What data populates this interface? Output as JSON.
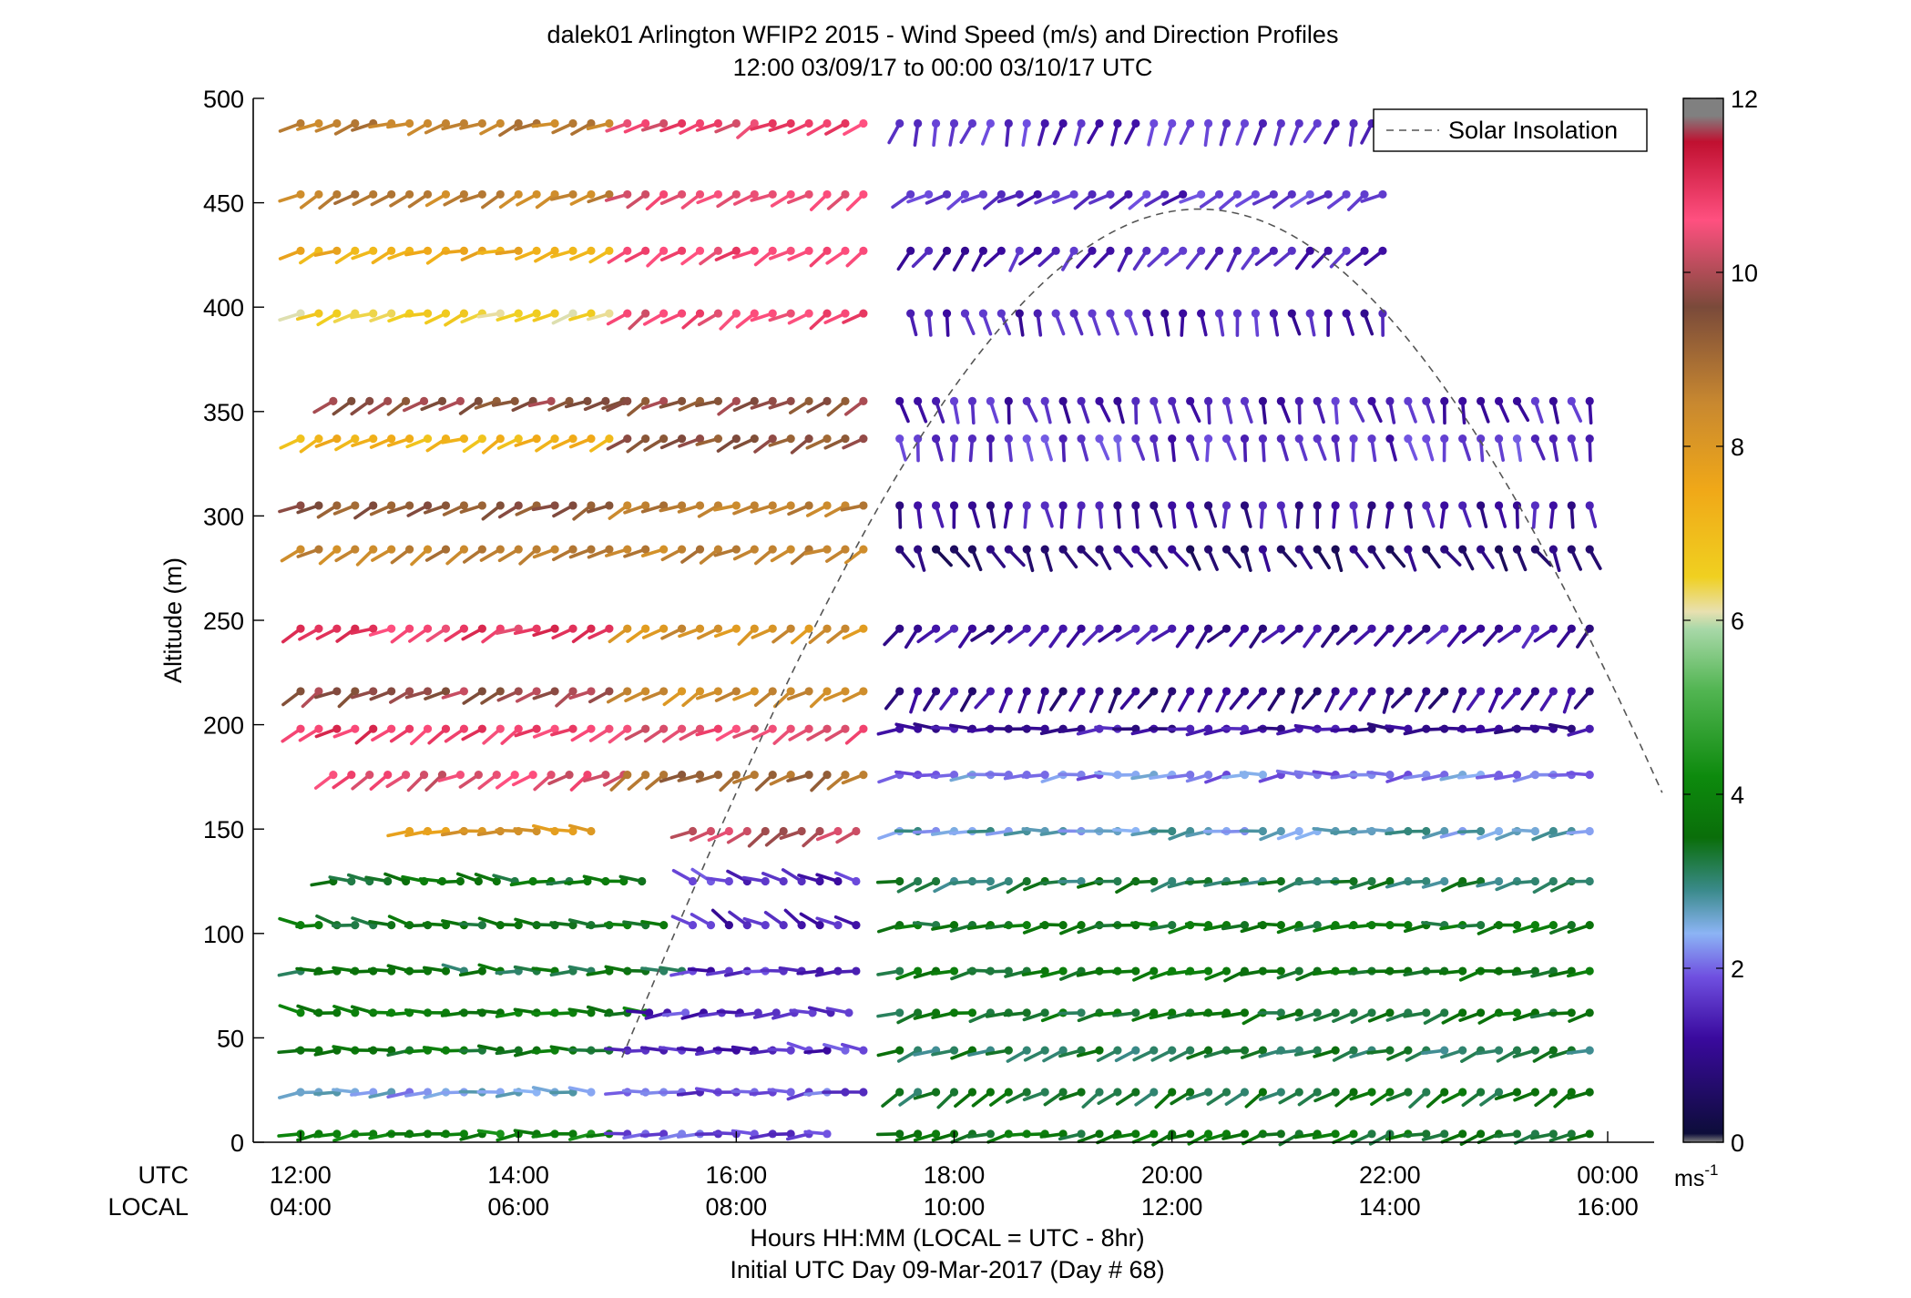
{
  "chart_data": {
    "type": "scatter",
    "title": "dalek01 Arlington WFIP2 2015 - Wind Speed (m/s) and Direction Profiles",
    "subtitle": "12:00 03/09/17 to 00:00 03/10/17  UTC",
    "xlabel": "Hours HH:MM  (LOCAL = UTC - 8hr)",
    "xlabel2": "Initial UTC Day 09-Mar-2017 (Day # 68)",
    "ylabel": "Altitude (m)",
    "row_label_utc": "UTC",
    "row_label_local": "LOCAL",
    "xlim_hours_utc": [
      11.65,
      24.5
    ],
    "ylim": [
      0,
      500
    ],
    "x_ticks_utc": [
      "12:00",
      "14:00",
      "16:00",
      "18:00",
      "20:00",
      "22:00",
      "00:00"
    ],
    "x_ticks_local": [
      "04:00",
      "06:00",
      "08:00",
      "10:00",
      "12:00",
      "14:00",
      "16:00"
    ],
    "x_tick_hours": [
      12,
      14,
      16,
      18,
      20,
      22,
      24
    ],
    "y_ticks": [
      0,
      50,
      100,
      150,
      200,
      250,
      300,
      350,
      400,
      450,
      500
    ],
    "legend": {
      "label": "Solar Insolation",
      "position": "top-right"
    },
    "colorbar": {
      "ticks": [
        0,
        2,
        4,
        6,
        8,
        10,
        12
      ],
      "unit_base": "ms",
      "unit_exp": "-1",
      "stops": [
        {
          "v": 0,
          "c": "#808080"
        },
        {
          "v": 0.1,
          "c": "#0d0d3a"
        },
        {
          "v": 1.2,
          "c": "#3a0a9e"
        },
        {
          "v": 1.9,
          "c": "#6f4fe0"
        },
        {
          "v": 2.4,
          "c": "#8cb4f5"
        },
        {
          "v": 2.9,
          "c": "#3a8a8a"
        },
        {
          "v": 3.5,
          "c": "#0a6e0a"
        },
        {
          "v": 4.2,
          "c": "#0d8a0d"
        },
        {
          "v": 5.2,
          "c": "#52b552"
        },
        {
          "v": 5.9,
          "c": "#a8d8a8"
        },
        {
          "v": 6.1,
          "c": "#e8e0b0"
        },
        {
          "v": 6.5,
          "c": "#f0d020"
        },
        {
          "v": 7.5,
          "c": "#f0a818"
        },
        {
          "v": 8.5,
          "c": "#c88830"
        },
        {
          "v": 9.6,
          "c": "#7a4a3a"
        },
        {
          "v": 10.6,
          "c": "#ff5080"
        },
        {
          "v": 11.5,
          "c": "#c01030"
        },
        {
          "v": 11.8,
          "c": "#808080"
        }
      ]
    },
    "insolation_curve": {
      "description_units": "peak height in altitude units",
      "sunrise_hour_utc": 14.95,
      "sunset_hour_utc": 26.2,
      "peak_hour_utc": 20.25,
      "peak_altitude": 447,
      "end_hour_utc": 24.5
    },
    "altitudes": [
      4,
      24,
      44,
      62,
      82,
      104,
      125,
      149,
      176,
      198,
      216,
      246,
      284,
      305,
      337,
      355,
      397,
      427,
      454,
      488
    ],
    "time_step_hours": 0.1667,
    "vectors_note": "Wind barbs: each row is an altitude; segments grouped by time range with representative direction (deg, meteorological) and speed (m/s).",
    "segments": [
      {
        "alt": 4,
        "t0": 12.0,
        "t1": 15.0,
        "dir": 265,
        "spd": 4.0
      },
      {
        "alt": 4,
        "t0": 15.0,
        "t1": 17.0,
        "dir": 270,
        "spd": 1.8
      },
      {
        "alt": 4,
        "t0": 17.5,
        "t1": 24.0,
        "dir": 255,
        "spd": 3.6
      },
      {
        "alt": 24,
        "t0": 12.0,
        "t1": 14.8,
        "dir": 270,
        "spd": 2.4
      },
      {
        "alt": 24,
        "t0": 15.0,
        "t1": 17.2,
        "dir": 265,
        "spd": 1.8
      },
      {
        "alt": 24,
        "t0": 17.5,
        "t1": 24.0,
        "dir": 240,
        "spd": 3.4
      },
      {
        "alt": 44,
        "t0": 12.0,
        "t1": 15.0,
        "dir": 270,
        "spd": 3.6
      },
      {
        "alt": 44,
        "t0": 15.0,
        "t1": 17.2,
        "dir": 275,
        "spd": 1.6
      },
      {
        "alt": 44,
        "t0": 17.5,
        "t1": 24.0,
        "dir": 255,
        "spd": 3.2
      },
      {
        "alt": 62,
        "t0": 12.0,
        "t1": 15.2,
        "dir": 275,
        "spd": 3.8
      },
      {
        "alt": 62,
        "t0": 15.2,
        "t1": 17.2,
        "dir": 270,
        "spd": 1.6
      },
      {
        "alt": 62,
        "t0": 17.5,
        "t1": 24.0,
        "dir": 255,
        "spd": 3.5
      },
      {
        "alt": 82,
        "t0": 12.0,
        "t1": 15.6,
        "dir": 272,
        "spd": 3.4
      },
      {
        "alt": 82,
        "t0": 15.6,
        "t1": 17.2,
        "dir": 270,
        "spd": 1.6
      },
      {
        "alt": 82,
        "t0": 17.5,
        "t1": 24.0,
        "dir": 258,
        "spd": 3.6
      },
      {
        "alt": 104,
        "t0": 12.0,
        "t1": 15.4,
        "dir": 280,
        "spd": 3.6
      },
      {
        "alt": 104,
        "t0": 15.6,
        "t1": 17.2,
        "dir": 300,
        "spd": 1.4
      },
      {
        "alt": 104,
        "t0": 17.5,
        "t1": 24.0,
        "dir": 262,
        "spd": 3.6
      },
      {
        "alt": 125,
        "t0": 12.3,
        "t1": 15.2,
        "dir": 275,
        "spd": 3.6
      },
      {
        "alt": 125,
        "t0": 15.6,
        "t1": 17.2,
        "dir": 290,
        "spd": 1.6
      },
      {
        "alt": 125,
        "t0": 17.5,
        "t1": 24.0,
        "dir": 255,
        "spd": 3.2
      },
      {
        "alt": 149,
        "t0": 13.0,
        "t1": 14.8,
        "dir": 270,
        "spd": 8.0
      },
      {
        "alt": 149,
        "t0": 15.6,
        "t1": 17.2,
        "dir": 240,
        "spd": 10.2
      },
      {
        "alt": 149,
        "t0": 17.5,
        "t1": 24.0,
        "dir": 262,
        "spd": 2.6
      },
      {
        "alt": 176,
        "t0": 12.3,
        "t1": 15.0,
        "dir": 240,
        "spd": 10.5
      },
      {
        "alt": 176,
        "t0": 15.0,
        "t1": 17.2,
        "dir": 240,
        "spd": 9.0
      },
      {
        "alt": 176,
        "t0": 17.5,
        "t1": 24.0,
        "dir": 265,
        "spd": 2.2
      },
      {
        "alt": 198,
        "t0": 12.0,
        "t1": 15.0,
        "dir": 240,
        "spd": 10.8
      },
      {
        "alt": 198,
        "t0": 15.0,
        "t1": 17.2,
        "dir": 240,
        "spd": 10.5
      },
      {
        "alt": 198,
        "t0": 17.5,
        "t1": 24.0,
        "dir": 268,
        "spd": 1.2
      },
      {
        "alt": 216,
        "t0": 12.0,
        "t1": 15.0,
        "dir": 240,
        "spd": 9.8
      },
      {
        "alt": 216,
        "t0": 15.0,
        "t1": 17.2,
        "dir": 240,
        "spd": 8.4
      },
      {
        "alt": 216,
        "t0": 17.5,
        "t1": 24.0,
        "dir": 210,
        "spd": 1.0
      },
      {
        "alt": 246,
        "t0": 12.0,
        "t1": 15.0,
        "dir": 245,
        "spd": 10.8
      },
      {
        "alt": 246,
        "t0": 15.0,
        "t1": 17.2,
        "dir": 240,
        "spd": 8.2
      },
      {
        "alt": 246,
        "t0": 17.5,
        "t1": 24.0,
        "dir": 225,
        "spd": 1.2
      },
      {
        "alt": 284,
        "t0": 12.0,
        "t1": 15.0,
        "dir": 240,
        "spd": 8.6
      },
      {
        "alt": 284,
        "t0": 15.0,
        "t1": 17.2,
        "dir": 245,
        "spd": 8.6
      },
      {
        "alt": 284,
        "t0": 17.5,
        "t1": 24.0,
        "dir": 150,
        "spd": 0.8
      },
      {
        "alt": 305,
        "t0": 12.0,
        "t1": 15.0,
        "dir": 245,
        "spd": 9.4
      },
      {
        "alt": 305,
        "t0": 15.0,
        "t1": 17.2,
        "dir": 245,
        "spd": 8.6
      },
      {
        "alt": 305,
        "t0": 17.5,
        "t1": 24.0,
        "dir": 175,
        "spd": 1.2
      },
      {
        "alt": 337,
        "t0": 12.0,
        "t1": 15.0,
        "dir": 245,
        "spd": 7.2
      },
      {
        "alt": 337,
        "t0": 15.0,
        "t1": 17.2,
        "dir": 245,
        "spd": 9.4
      },
      {
        "alt": 337,
        "t0": 17.5,
        "t1": 24.0,
        "dir": 170,
        "spd": 1.6
      },
      {
        "alt": 355,
        "t0": 12.3,
        "t1": 15.0,
        "dir": 245,
        "spd": 9.6
      },
      {
        "alt": 355,
        "t0": 15.0,
        "t1": 17.2,
        "dir": 245,
        "spd": 9.6
      },
      {
        "alt": 355,
        "t0": 17.5,
        "t1": 24.0,
        "dir": 165,
        "spd": 1.4
      },
      {
        "alt": 397,
        "t0": 12.0,
        "t1": 15.0,
        "dir": 250,
        "spd": 6.4
      },
      {
        "alt": 397,
        "t0": 15.0,
        "t1": 17.2,
        "dir": 240,
        "spd": 10.6
      },
      {
        "alt": 397,
        "t0": 17.6,
        "t1": 22.0,
        "dir": 170,
        "spd": 1.4
      },
      {
        "alt": 427,
        "t0": 12.0,
        "t1": 15.0,
        "dir": 250,
        "spd": 7.4
      },
      {
        "alt": 427,
        "t0": 15.0,
        "t1": 17.2,
        "dir": 240,
        "spd": 10.6
      },
      {
        "alt": 427,
        "t0": 17.6,
        "t1": 22.0,
        "dir": 220,
        "spd": 1.4
      },
      {
        "alt": 454,
        "t0": 12.0,
        "t1": 15.0,
        "dir": 245,
        "spd": 8.6
      },
      {
        "alt": 454,
        "t0": 15.0,
        "t1": 17.2,
        "dir": 240,
        "spd": 10.6
      },
      {
        "alt": 454,
        "t0": 17.6,
        "t1": 22.0,
        "dir": 240,
        "spd": 1.6
      },
      {
        "alt": 488,
        "t0": 12.0,
        "t1": 15.0,
        "dir": 250,
        "spd": 8.6
      },
      {
        "alt": 488,
        "t0": 15.0,
        "t1": 17.2,
        "dir": 240,
        "spd": 10.6
      },
      {
        "alt": 488,
        "t0": 17.5,
        "t1": 22.6,
        "dir": 200,
        "spd": 1.6
      }
    ]
  }
}
